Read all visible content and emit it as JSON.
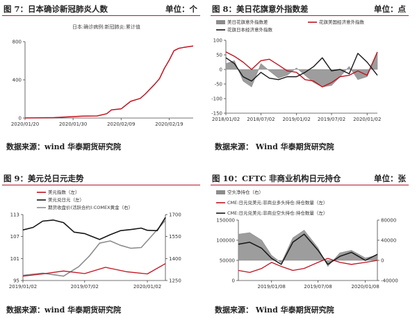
{
  "colors": {
    "red": "#c0121e",
    "black": "#151515",
    "gray": "#8c8c8c",
    "darkgray": "#5a5a5a",
    "header_rule": "#b8182d"
  },
  "charts": [
    {
      "figure_title": "图 7：日本确诊新冠肺炎人数",
      "unit": "单位：个",
      "source": "数据来源：wind  华泰期货研究院",
      "chart_data": {
        "type": "line",
        "subtitle": "日本:确诊病例:新冠肺炎:累计值",
        "x_ticks": [
          "2020/01/20",
          "2020/01/30",
          "2020/02/09",
          "2020/02/19"
        ],
        "x_range": [
          "2020/01/20",
          "2020/02/24"
        ],
        "y_ticks": [
          0,
          400,
          800
        ],
        "ylim": [
          0,
          800
        ],
        "grid": false,
        "series": [
          {
            "name": "日本:确诊病例:新冠肺炎:累计值",
            "color": "red",
            "x": [
              "2020/01/20",
              "2020/01/26",
              "2020/02/01",
              "2020/02/04",
              "2020/02/06",
              "2020/02/07",
              "2020/02/09",
              "2020/02/11",
              "2020/02/13",
              "2020/02/14",
              "2020/02/16",
              "2020/02/17",
              "2020/02/18",
              "2020/02/19",
              "2020/02/20",
              "2020/02/21",
              "2020/02/22",
              "2020/02/24"
            ],
            "y": [
              1,
              4,
              20,
              22,
              45,
              86,
              96,
              175,
              206,
              251,
              355,
              414,
              520,
              605,
              705,
              730,
              740,
              755
            ]
          }
        ]
      }
    },
    {
      "figure_title": "图 8：美日花旗意外指数差",
      "unit": "单位：点",
      "source": "数据来源：   Wind  华泰期货研究院",
      "chart_data": {
        "type": "area",
        "x_ticks": [
          "2018/01/02",
          "2018/07/02",
          "2019/01/02",
          "2019/07/02",
          "2020/01/02"
        ],
        "x_range": [
          "2018/01/02",
          "2020/02/24"
        ],
        "y_ticks": [
          -150,
          -100,
          -50,
          0,
          50,
          100
        ],
        "ylim": [
          -150,
          100
        ],
        "grid": false,
        "legend": [
          "美日花旗意外指数差",
          "花旗美国经济意外指数",
          "花旗日本经济意外指数"
        ],
        "series": [
          {
            "name": "美日花旗意外指数差",
            "color": "gray",
            "x": [
              "2018/01/02",
              "2018/02/15",
              "2018/04/01",
              "2018/05/15",
              "2018/07/02",
              "2018/08/15",
              "2018/10/01",
              "2018/11/15",
              "2019/01/02",
              "2019/02/15",
              "2019/04/01",
              "2019/05/15",
              "2019/07/02",
              "2019/08/15",
              "2019/10/01",
              "2019/11/15",
              "2020/01/02",
              "2020/02/24"
            ],
            "y": [
              20,
              30,
              -40,
              -60,
              20,
              -5,
              -30,
              -20,
              5,
              -20,
              -45,
              -60,
              -55,
              -25,
              10,
              -35,
              -25,
              55
            ]
          },
          {
            "name": "花旗美国经济意外指数",
            "color": "red",
            "x": [
              "2018/01/02",
              "2018/02/15",
              "2018/04/01",
              "2018/05/15",
              "2018/07/02",
              "2018/08/15",
              "2018/10/01",
              "2018/11/15",
              "2019/01/02",
              "2019/02/15",
              "2019/04/01",
              "2019/05/15",
              "2019/07/02",
              "2019/08/15",
              "2019/10/01",
              "2019/11/15",
              "2020/01/02",
              "2020/02/24"
            ],
            "y": [
              60,
              45,
              25,
              0,
              30,
              35,
              15,
              -5,
              -10,
              -35,
              -40,
              -60,
              -45,
              -25,
              -20,
              -5,
              -20,
              60
            ]
          },
          {
            "name": "花旗日本经济意外指数",
            "color": "black",
            "x": [
              "2018/01/02",
              "2018/02/15",
              "2018/04/01",
              "2018/05/15",
              "2018/07/02",
              "2018/08/15",
              "2018/10/01",
              "2018/11/15",
              "2019/01/02",
              "2019/02/15",
              "2019/04/01",
              "2019/05/15",
              "2019/07/02",
              "2019/08/15",
              "2019/10/01",
              "2019/11/15",
              "2020/01/02",
              "2020/02/24"
            ],
            "y": [
              40,
              20,
              -25,
              -40,
              -10,
              -30,
              -35,
              -25,
              -25,
              -10,
              10,
              40,
              -5,
              0,
              -15,
              55,
              25,
              -20
            ]
          }
        ]
      }
    },
    {
      "figure_title": "图 9：美元兑日元走势",
      "unit": "",
      "source": "数据来源：wind  华泰期货研究院",
      "chart_data": {
        "type": "line",
        "x_ticks": [
          "2019/01/02",
          "2019/07/02",
          "2020/01/02"
        ],
        "x_range": [
          "2019/01/02",
          "2020/02/24"
        ],
        "y_left_ticks": [
          95,
          101,
          107,
          113
        ],
        "y_left_lim": [
          95,
          113
        ],
        "y_right_ticks": [
          1250,
          1400,
          1550,
          1700
        ],
        "y_right_lim": [
          1250,
          1700
        ],
        "grid": false,
        "legend": [
          "美元指数（左）",
          "美元兑日元（左）",
          "期货收盘价(活跃合约):COMEX黄金（右）"
        ],
        "series": [
          {
            "name": "美元指数（左）",
            "color": "red",
            "axis": "left",
            "x": [
              "2019/01/02",
              "2019/03/01",
              "2019/05/01",
              "2019/07/02",
              "2019/09/01",
              "2019/11/01",
              "2020/01/02",
              "2020/02/24"
            ],
            "y": [
              96.2,
              96.8,
              97.6,
              96.9,
              98.6,
              97.4,
              96.8,
              99.6
            ]
          },
          {
            "name": "美元兑日元（左）",
            "color": "black",
            "axis": "left",
            "x": [
              "2019/01/02",
              "2019/02/01",
              "2019/03/01",
              "2019/04/01",
              "2019/05/01",
              "2019/06/01",
              "2019/07/02",
              "2019/08/15",
              "2019/09/15",
              "2019/10/15",
              "2019/11/15",
              "2019/12/15",
              "2020/01/02",
              "2020/01/31",
              "2020/02/24"
            ],
            "y": [
              108.8,
              109.5,
              111.2,
              111.5,
              110.8,
              108.2,
              107.8,
              106.2,
              107.5,
              108.6,
              108.9,
              109.3,
              108.7,
              108.6,
              112.2
            ]
          },
          {
            "name": "期货收盘价(活跃合约):COMEX黄金（右）",
            "color": "gray",
            "axis": "right",
            "x": [
              "2019/01/02",
              "2019/03/01",
              "2019/05/01",
              "2019/06/15",
              "2019/07/15",
              "2019/08/15",
              "2019/09/15",
              "2019/10/15",
              "2019/11/15",
              "2019/12/15",
              "2020/01/15",
              "2020/02/24"
            ],
            "y": [
              1285,
              1300,
              1280,
              1345,
              1415,
              1505,
              1520,
              1490,
              1470,
              1475,
              1555,
              1660
            ]
          }
        ]
      }
    },
    {
      "figure_title": "图 10：CFTC 非商业机构日元持仓",
      "unit": "单位：张",
      "source": "数据来源：   Wind  华泰期货研究院",
      "chart_data": {
        "type": "area",
        "x_ticks": [
          "2019/01/08",
          "2019/07/08",
          "2020/01/08"
        ],
        "x_range": [
          "2018/09/01",
          "2020/02/24"
        ],
        "y_left_ticks": [
          0,
          50000,
          100000,
          150000
        ],
        "y_left_lim": [
          0,
          150000
        ],
        "y_right_ticks": [
          -40000,
          0,
          40000,
          80000
        ],
        "y_right_lim": [
          -40000,
          80000
        ],
        "grid": false,
        "legend": [
          "空头净持仓（右）",
          "CME:日元兑美元:非商业多头持仓:持仓数量（左）",
          "CME:日元兑美元:非商业空头持仓:持仓数量（左）"
        ],
        "series": [
          {
            "name": "空头净持仓（右）",
            "color": "gray",
            "axis": "right",
            "x": [
              "2018/09/01",
              "2018/10/15",
              "2018/12/01",
              "2019/01/08",
              "2019/02/15",
              "2019/04/01",
              "2019/05/15",
              "2019/07/08",
              "2019/08/15",
              "2019/10/01",
              "2019/11/15",
              "2020/01/08",
              "2020/02/24"
            ],
            "y": [
              52000,
              55000,
              40000,
              10000,
              -5000,
              45000,
              60000,
              25000,
              -12000,
              15000,
              20000,
              5000,
              10000
            ]
          },
          {
            "name": "CME:日元兑美元:非商业多头持仓:持仓数量（左）",
            "color": "red",
            "axis": "left",
            "x": [
              "2018/09/01",
              "2018/10/15",
              "2018/12/01",
              "2019/01/08",
              "2019/02/15",
              "2019/04/01",
              "2019/05/15",
              "2019/07/08",
              "2019/08/15",
              "2019/10/01",
              "2019/11/15",
              "2020/01/08",
              "2020/02/24"
            ],
            "y": [
              25000,
              20000,
              30000,
              45000,
              35000,
              25000,
              30000,
              45000,
              55000,
              45000,
              40000,
              45000,
              50000
            ]
          },
          {
            "name": "CME:日元兑美元:非商业空头持仓:持仓数量（左）",
            "color": "black",
            "axis": "left",
            "x": [
              "2018/09/01",
              "2018/10/15",
              "2018/12/01",
              "2019/01/08",
              "2019/02/15",
              "2019/04/01",
              "2019/05/15",
              "2019/07/08",
              "2019/08/15",
              "2019/10/01",
              "2019/11/15",
              "2020/01/08",
              "2020/02/24"
            ],
            "y": [
              90000,
              95000,
              80000,
              55000,
              40000,
              95000,
              115000,
              75000,
              40000,
              60000,
              70000,
              50000,
              65000
            ]
          }
        ]
      }
    }
  ]
}
